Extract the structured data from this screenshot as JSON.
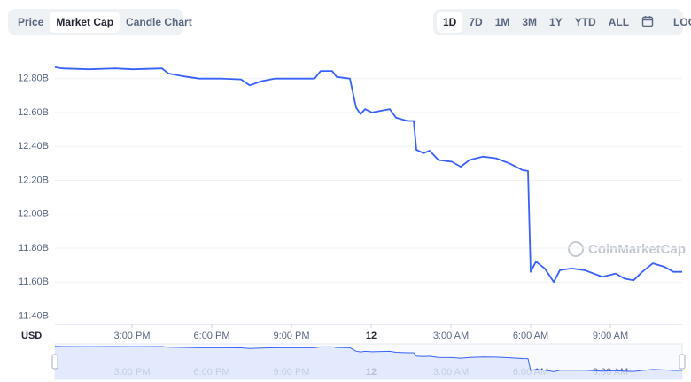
{
  "tabs": [
    "Price",
    "Market Cap",
    "Candle Chart"
  ],
  "ranges": [
    "1D",
    "7D",
    "1M",
    "3M",
    "1Y",
    "YTD",
    "ALL"
  ],
  "log_button": "LOG",
  "watermark": "CoinMarketCap",
  "chart_data": {
    "type": "line",
    "color": "#3861fb",
    "grid": true,
    "currency_label": "USD",
    "x": [
      12.1,
      12.37,
      13.37,
      14.37,
      15.03,
      16.13,
      16.37,
      16.87,
      17.53,
      18.37,
      19.1,
      19.43,
      19.87,
      20.37,
      21.37,
      21.87,
      22.1,
      22.53,
      22.7,
      23.2,
      23.43,
      23.6,
      23.77,
      24.03,
      24.7,
      24.93,
      25.37,
      25.6,
      25.7,
      25.97,
      26.2,
      26.53,
      27.03,
      27.37,
      27.7,
      28.2,
      28.7,
      29.2,
      29.7,
      29.9,
      30.0,
      30.2,
      30.53,
      30.87,
      31.1,
      31.53,
      32.03,
      32.7,
      33.2,
      33.53,
      33.87,
      34.2,
      34.6,
      35.03,
      35.37,
      35.7
    ],
    "values": [
      12.868,
      12.86,
      12.855,
      12.86,
      12.855,
      12.86,
      12.83,
      12.815,
      12.8,
      12.8,
      12.795,
      12.76,
      12.785,
      12.8,
      12.8,
      12.8,
      12.845,
      12.845,
      12.81,
      12.8,
      12.63,
      12.59,
      12.62,
      12.6,
      12.62,
      12.57,
      12.55,
      12.55,
      12.38,
      12.36,
      12.375,
      12.32,
      12.31,
      12.28,
      12.32,
      12.34,
      12.33,
      12.3,
      12.26,
      12.255,
      11.66,
      11.72,
      11.68,
      11.6,
      11.67,
      11.68,
      11.67,
      11.63,
      11.65,
      11.62,
      11.61,
      11.66,
      11.71,
      11.69,
      11.66,
      11.66
    ],
    "xlim": [
      12.1,
      35.7
    ],
    "xticks": [
      {
        "value": 15,
        "label": "3:00 PM"
      },
      {
        "value": 18,
        "label": "6:00 PM"
      },
      {
        "value": 21,
        "label": "9:00 PM"
      },
      {
        "value": 24,
        "label": "12"
      },
      {
        "value": 27,
        "label": "3:00 AM"
      },
      {
        "value": 30,
        "label": "6:00 AM"
      },
      {
        "value": 33,
        "label": "9:00 AM"
      }
    ],
    "ylim": [
      11.35,
      12.95
    ],
    "yticks": [
      {
        "value": 11.4,
        "label": "11.40B"
      },
      {
        "value": 11.6,
        "label": "11.60B"
      },
      {
        "value": 11.8,
        "label": "11.80B"
      },
      {
        "value": 12.0,
        "label": "12.00B"
      },
      {
        "value": 12.2,
        "label": "12.20B"
      },
      {
        "value": 12.4,
        "label": "12.40B"
      },
      {
        "value": 12.6,
        "label": "12.60B"
      },
      {
        "value": 12.8,
        "label": "12.80B"
      }
    ]
  }
}
